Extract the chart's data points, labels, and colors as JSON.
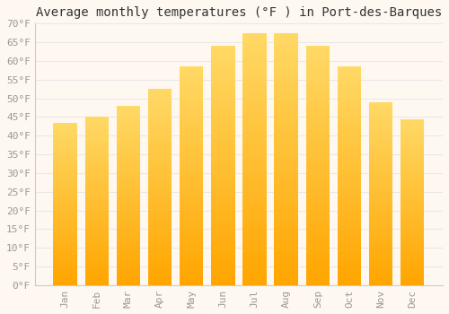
{
  "title": "Average monthly temperatures (°F ) in Port-des-Barques",
  "months": [
    "Jan",
    "Feb",
    "Mar",
    "Apr",
    "May",
    "Jun",
    "Jul",
    "Aug",
    "Sep",
    "Oct",
    "Nov",
    "Dec"
  ],
  "values": [
    43.5,
    45.0,
    48.0,
    52.5,
    58.5,
    64.0,
    67.5,
    67.5,
    64.0,
    58.5,
    49.0,
    44.5
  ],
  "bar_color_top": "#FFD966",
  "bar_color_bottom": "#FFA500",
  "background_color": "#FFF8F0",
  "grid_color": "#E8E8E8",
  "tick_label_color": "#999999",
  "title_color": "#333333",
  "spine_color": "#CCCCCC",
  "ylim": [
    0,
    70
  ],
  "yticks": [
    0,
    5,
    10,
    15,
    20,
    25,
    30,
    35,
    40,
    45,
    50,
    55,
    60,
    65,
    70
  ],
  "ytick_labels": [
    "0°F",
    "5°F",
    "10°F",
    "15°F",
    "20°F",
    "25°F",
    "30°F",
    "35°F",
    "40°F",
    "45°F",
    "50°F",
    "55°F",
    "60°F",
    "65°F",
    "70°F"
  ],
  "title_fontsize": 10,
  "tick_fontsize": 8,
  "bar_width": 0.75,
  "figsize": [
    5.0,
    3.5
  ],
  "dpi": 100
}
